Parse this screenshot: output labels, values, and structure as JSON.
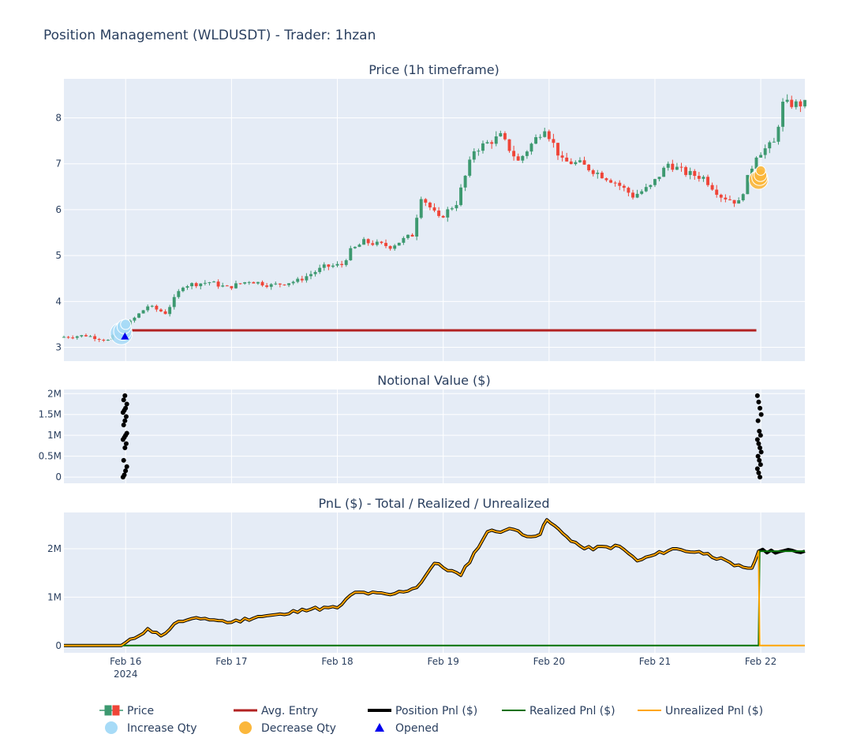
{
  "figure": {
    "title": "Position Management (WLDUSDT) - Trader: 1hzan",
    "subplot_titles": [
      "Price (1h timeframe)",
      "Notional Value ($)",
      "PnL ($) - Total / Realized / Unrealized"
    ]
  },
  "colors": {
    "plot_bg": "#e5ecf6",
    "grid": "#ffffff",
    "increasing": "#3d9970",
    "decreasing": "#ef4538",
    "avg_entry": "#b22222",
    "position_pnl": "#000000",
    "realized_pnl": "#007000",
    "unrealized_pnl": "#ffa500",
    "increase_qty": "#a7dbf7",
    "decrease_qty": "#fbb73b",
    "opened": "#0000ee",
    "notional": "#000000"
  },
  "legend": {
    "items": [
      {
        "label": "Price",
        "icon": "candlestick-icon"
      },
      {
        "label": "Avg. Entry",
        "icon": "line-icon"
      },
      {
        "label": "Position Pnl ($)",
        "icon": "line-icon"
      },
      {
        "label": "Realized Pnl ($)",
        "icon": "line-icon"
      },
      {
        "label": "Unrealized Pnl ($)",
        "icon": "line-icon"
      },
      {
        "label": "Increase Qty",
        "icon": "circle-icon"
      },
      {
        "label": "Decrease Qty",
        "icon": "circle-icon"
      },
      {
        "label": "Opened",
        "icon": "triangle-icon"
      }
    ]
  },
  "chart_data": [
    {
      "type": "candlestick",
      "title": "Price (1h timeframe)",
      "x_range": [
        "2024-02-15 10:00",
        "2024-02-22 10:00"
      ],
      "x_ticks": [
        {
          "t": "2024-02-16",
          "label": "Feb 16",
          "sublabel": "2024"
        },
        {
          "t": "2024-02-17",
          "label": "Feb 17"
        },
        {
          "t": "2024-02-18",
          "label": "Feb 18"
        },
        {
          "t": "2024-02-19",
          "label": "Feb 19"
        },
        {
          "t": "2024-02-20",
          "label": "Feb 20"
        },
        {
          "t": "2024-02-21",
          "label": "Feb 21"
        },
        {
          "t": "2024-02-22",
          "label": "Feb 22"
        }
      ],
      "ylim": [
        2.7,
        8.85
      ],
      "y_ticks": [
        {
          "v": 3,
          "label": "3"
        },
        {
          "v": 4,
          "label": "4"
        },
        {
          "v": 5,
          "label": "5"
        },
        {
          "v": 6,
          "label": "6"
        },
        {
          "v": 7,
          "label": "7"
        },
        {
          "v": 8,
          "label": "8"
        }
      ],
      "price_anchors": [
        [
          "2024-02-15 10:00",
          3.22
        ],
        [
          "2024-02-15 16:00",
          3.26
        ],
        [
          "2024-02-15 21:00",
          3.15
        ],
        [
          "2024-02-15 23:00",
          3.3
        ],
        [
          "2024-02-16 02:00",
          3.55
        ],
        [
          "2024-02-16 06:00",
          3.9
        ],
        [
          "2024-02-16 10:00",
          3.75
        ],
        [
          "2024-02-16 14:00",
          4.35
        ],
        [
          "2024-02-16 20:00",
          4.42
        ],
        [
          "2024-02-17 00:00",
          4.3
        ],
        [
          "2024-02-17 05:00",
          4.45
        ],
        [
          "2024-02-17 10:00",
          4.35
        ],
        [
          "2024-02-17 16:00",
          4.45
        ],
        [
          "2024-02-17 22:00",
          4.75
        ],
        [
          "2024-02-18 02:00",
          4.8
        ],
        [
          "2024-02-18 04:00",
          5.1
        ],
        [
          "2024-02-18 07:00",
          5.3
        ],
        [
          "2024-02-18 13:00",
          5.2
        ],
        [
          "2024-02-18 18:00",
          5.45
        ],
        [
          "2024-02-18 20:00",
          6.3
        ],
        [
          "2024-02-19 00:00",
          5.8
        ],
        [
          "2024-02-19 04:00",
          6.15
        ],
        [
          "2024-02-19 08:00",
          7.3
        ],
        [
          "2024-02-19 14:00",
          7.6
        ],
        [
          "2024-02-19 18:00",
          7.05
        ],
        [
          "2024-02-20 00:00",
          7.8
        ],
        [
          "2024-02-20 04:00",
          7.05
        ],
        [
          "2024-02-20 08:00",
          7.0
        ],
        [
          "2024-02-20 16:00",
          6.6
        ],
        [
          "2024-02-20 20:00",
          6.3
        ],
        [
          "2024-02-21 00:00",
          6.5
        ],
        [
          "2024-02-21 04:00",
          7.0
        ],
        [
          "2024-02-21 08:00",
          6.8
        ],
        [
          "2024-02-21 12:00",
          6.7
        ],
        [
          "2024-02-21 16:00",
          6.3
        ],
        [
          "2024-02-21 20:00",
          6.15
        ],
        [
          "2024-02-22 00:00",
          7.2
        ],
        [
          "2024-02-22 04:00",
          7.45
        ],
        [
          "2024-02-22 06:00",
          8.3
        ],
        [
          "2024-02-22 10:00",
          8.3
        ]
      ],
      "avg_entry": {
        "price": 3.37,
        "x_range": [
          "2024-02-15 23:00",
          "2024-02-21 23:00"
        ]
      },
      "increase_qty_points": [
        [
          "2024-02-15 23:00",
          3.3
        ],
        [
          "2024-02-15 23:20",
          3.35
        ],
        [
          "2024-02-15 23:40",
          3.45
        ],
        [
          "2024-02-16 00:00",
          3.5
        ]
      ],
      "decrease_qty_points": [
        [
          "2024-02-21 23:30",
          6.65
        ],
        [
          "2024-02-21 23:45",
          6.7
        ],
        [
          "2024-02-21 23:55",
          6.75
        ],
        [
          "2024-02-22 00:00",
          6.85
        ]
      ],
      "opened_point": [
        "2024-02-15 23:50",
        3.24
      ]
    },
    {
      "type": "scatter",
      "title": "Notional Value ($)",
      "ylim": [
        -150000,
        2100000
      ],
      "y_ticks": [
        {
          "v": 0,
          "label": "0"
        },
        {
          "v": 500000,
          "label": "0.5M"
        },
        {
          "v": 1000000,
          "label": "1M"
        },
        {
          "v": 1500000,
          "label": "1.5M"
        },
        {
          "v": 2000000,
          "label": "2M"
        }
      ],
      "clusters": [
        {
          "t": "2024-02-15 23:50",
          "values": [
            0,
            50000,
            150000,
            250000,
            400000,
            700000,
            800000,
            900000,
            950000,
            1000000,
            1050000,
            1250000,
            1350000,
            1450000,
            1550000,
            1600000,
            1650000,
            1750000,
            1850000,
            1950000
          ]
        },
        {
          "t": "2024-02-21 23:40",
          "values": [
            1950000,
            1800000,
            1650000,
            1500000,
            1350000,
            1100000,
            1000000,
            900000,
            800000,
            700000,
            600000,
            500000,
            400000,
            300000,
            200000,
            100000,
            0
          ]
        }
      ]
    },
    {
      "type": "line",
      "title": "PnL ($) - Total / Realized / Unrealized",
      "ylim": [
        -150000,
        2750000
      ],
      "y_ticks": [
        {
          "v": 0,
          "label": "0"
        },
        {
          "v": 1000000,
          "label": "1M"
        },
        {
          "v": 2000000,
          "label": "2M"
        }
      ],
      "series": [
        {
          "name": "Position Pnl ($)",
          "anchors": [
            [
              "2024-02-15 10:00",
              0
            ],
            [
              "2024-02-15 23:00",
              0
            ],
            [
              "2024-02-16 02:00",
              150000
            ],
            [
              "2024-02-16 05:00",
              350000
            ],
            [
              "2024-02-16 08:00",
              200000
            ],
            [
              "2024-02-16 12:00",
              500000
            ],
            [
              "2024-02-16 18:00",
              560000
            ],
            [
              "2024-02-17 00:00",
              480000
            ],
            [
              "2024-02-17 06:00",
              600000
            ],
            [
              "2024-02-17 12:00",
              640000
            ],
            [
              "2024-02-17 16:00",
              750000
            ],
            [
              "2024-02-18 00:00",
              780000
            ],
            [
              "2024-02-18 04:00",
              1100000
            ],
            [
              "2024-02-18 12:00",
              1050000
            ],
            [
              "2024-02-18 18:00",
              1200000
            ],
            [
              "2024-02-18 22:00",
              1700000
            ],
            [
              "2024-02-19 04:00",
              1450000
            ],
            [
              "2024-02-19 10:00",
              2350000
            ],
            [
              "2024-02-19 16:00",
              2400000
            ],
            [
              "2024-02-19 20:00",
              2250000
            ],
            [
              "2024-02-19 22:00",
              2300000
            ],
            [
              "2024-02-19 23:30",
              2600000
            ],
            [
              "2024-02-20 04:00",
              2250000
            ],
            [
              "2024-02-20 08:00",
              2000000
            ],
            [
              "2024-02-20 16:00",
              2050000
            ],
            [
              "2024-02-20 20:00",
              1750000
            ],
            [
              "2024-02-21 04:00",
              2000000
            ],
            [
              "2024-02-21 12:00",
              1900000
            ],
            [
              "2024-02-21 18:00",
              1650000
            ],
            [
              "2024-02-21 22:00",
              1600000
            ],
            [
              "2024-02-21 23:30",
              1950000
            ],
            [
              "2024-02-22 10:00",
              1950000
            ]
          ]
        },
        {
          "name": "Realized Pnl ($)",
          "anchors": [
            [
              "2024-02-15 10:00",
              0
            ],
            [
              "2024-02-21 23:30",
              0
            ],
            [
              "2024-02-21 23:45",
              1950000
            ],
            [
              "2024-02-22 10:00",
              1950000
            ]
          ]
        },
        {
          "name": "Unrealized Pnl ($)",
          "anchors": [
            [
              "2024-02-15 10:00",
              0
            ],
            [
              "2024-02-15 23:00",
              0
            ],
            [
              "2024-02-16 02:00",
              150000
            ],
            [
              "2024-02-16 05:00",
              350000
            ],
            [
              "2024-02-16 08:00",
              200000
            ],
            [
              "2024-02-16 12:00",
              500000
            ],
            [
              "2024-02-16 18:00",
              560000
            ],
            [
              "2024-02-17 00:00",
              480000
            ],
            [
              "2024-02-17 06:00",
              600000
            ],
            [
              "2024-02-17 12:00",
              640000
            ],
            [
              "2024-02-17 16:00",
              750000
            ],
            [
              "2024-02-18 00:00",
              780000
            ],
            [
              "2024-02-18 04:00",
              1100000
            ],
            [
              "2024-02-18 12:00",
              1050000
            ],
            [
              "2024-02-18 18:00",
              1200000
            ],
            [
              "2024-02-18 22:00",
              1700000
            ],
            [
              "2024-02-19 04:00",
              1450000
            ],
            [
              "2024-02-19 10:00",
              2350000
            ],
            [
              "2024-02-19 16:00",
              2400000
            ],
            [
              "2024-02-19 20:00",
              2250000
            ],
            [
              "2024-02-19 22:00",
              2300000
            ],
            [
              "2024-02-19 23:30",
              2600000
            ],
            [
              "2024-02-20 04:00",
              2250000
            ],
            [
              "2024-02-20 08:00",
              2000000
            ],
            [
              "2024-02-20 16:00",
              2050000
            ],
            [
              "2024-02-20 20:00",
              1750000
            ],
            [
              "2024-02-21 04:00",
              2000000
            ],
            [
              "2024-02-21 12:00",
              1900000
            ],
            [
              "2024-02-21 18:00",
              1650000
            ],
            [
              "2024-02-21 22:00",
              1600000
            ],
            [
              "2024-02-21 23:30",
              1950000
            ],
            [
              "2024-02-21 23:45",
              0
            ],
            [
              "2024-02-22 10:00",
              0
            ]
          ]
        }
      ]
    }
  ]
}
